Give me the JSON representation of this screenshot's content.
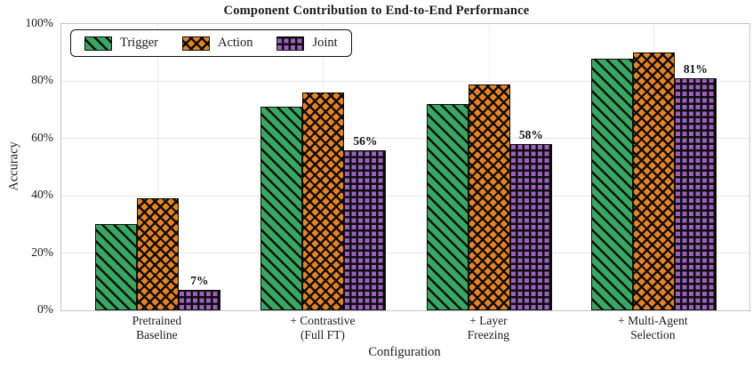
{
  "title": "Component Contribution to End-to-End Performance",
  "chart_data": {
    "type": "bar",
    "title": "Component Contribution to End-to-End Performance",
    "xlabel": "Configuration",
    "ylabel": "Accuracy",
    "ylim": [
      0,
      100
    ],
    "y_ticks": [
      "0%",
      "20%",
      "40%",
      "60%",
      "80%",
      "100%"
    ],
    "grid": true,
    "legend_position": "upper left",
    "categories": [
      "Pretrained\nBaseline",
      "+ Contrastive\n(Full FT)",
      "+ Layer\nFreezing",
      "+ Multi-Agent\nSelection"
    ],
    "series": [
      {
        "name": "Trigger",
        "color": "#37A862",
        "hatch": "diagonal",
        "values": [
          30,
          71,
          72,
          88
        ]
      },
      {
        "name": "Action",
        "color": "#E8821E",
        "hatch": "cross",
        "values": [
          39,
          76,
          79,
          90
        ]
      },
      {
        "name": "Joint",
        "color": "#9B60BE",
        "hatch": "grid",
        "values": [
          7,
          56,
          58,
          81
        ],
        "labels": [
          "7%",
          "56%",
          "58%",
          "81%"
        ]
      }
    ]
  },
  "colors": {
    "hatch_line": "#0d0d0d",
    "spine": "#c4c4c4",
    "gridline": "#e7e7e7",
    "background": "#ffffff"
  }
}
